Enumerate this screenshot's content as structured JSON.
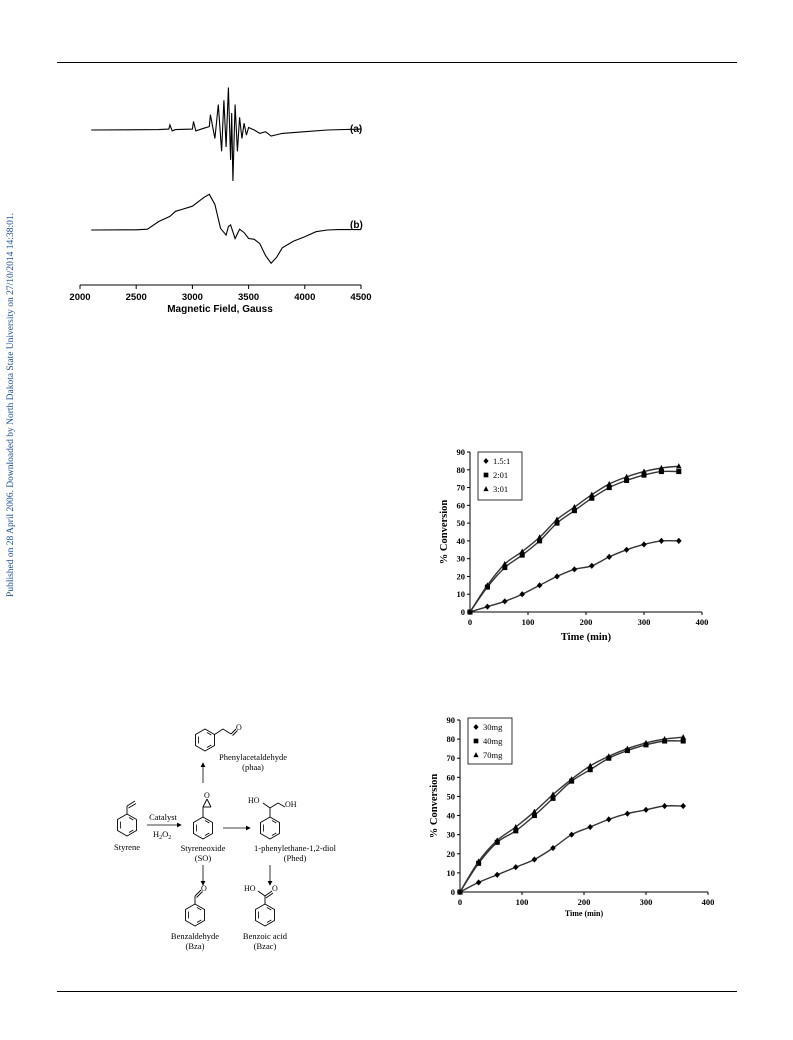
{
  "side_note": "Published on 28 April 2006. Downloaded by North Dakota State University on 27/10/2014 14:38:01.",
  "epr": {
    "xlabel": "Magnetic Field, Gauss",
    "trace_a_label": "(a)",
    "trace_b_label": "(b)"
  },
  "scheme": {
    "styrene": "Styrene",
    "catalyst": "Catalyst",
    "oxidant": "H",
    "oxidant_sub1": "2",
    "oxidant_o": "O",
    "oxidant_sub2": "2",
    "styreneoxide": "Styreneoxide",
    "so": "(SO)",
    "phenylacetaldehyde": "Phenylacetaldehyde",
    "phaa": "(phaa)",
    "diol": "1-phenylethane-1,2-diol",
    "phed": "(Phed)",
    "benzaldehyde": "Benzaldehyde",
    "bza": "(Bza)",
    "benzoic_acid": "Benzoic acid",
    "bzac": "(Bzac)",
    "atom_o": "O",
    "atom_ho": "HO",
    "atom_oh": "OH"
  },
  "chart_data": [
    {
      "id": "epr-spectrum",
      "type": "line",
      "xlabel": "Magnetic Field, Gauss",
      "ylabel": "",
      "xlim": [
        2000,
        4500
      ],
      "xticks": [
        2000,
        2500,
        3000,
        3500,
        4000,
        4500
      ],
      "grid": false,
      "series": [
        {
          "name": "(a)",
          "x": [
            2100,
            2700,
            2790,
            2800,
            2820,
            2850,
            3000,
            3010,
            3030,
            3100,
            3150,
            3160,
            3200,
            3230,
            3260,
            3280,
            3300,
            3320,
            3340,
            3350,
            3360,
            3380,
            3400,
            3420,
            3440,
            3460,
            3480,
            3500,
            3550,
            3600,
            3650,
            3700,
            3800,
            4000,
            4200,
            4500
          ],
          "y": [
            0.0,
            0.05,
            0.1,
            0.6,
            -0.1,
            0.05,
            0.1,
            1.0,
            -0.1,
            0.2,
            0.4,
            1.8,
            -1.0,
            3.0,
            -2.5,
            3.5,
            -2.0,
            5.0,
            -3.5,
            2.0,
            -6.0,
            3.0,
            -2.5,
            1.5,
            -1.0,
            0.8,
            -0.6,
            0.3,
            0.0,
            -0.4,
            -0.2,
            -0.7,
            -0.4,
            -0.2,
            0.0,
            0.1
          ]
        },
        {
          "name": "(b)",
          "x": [
            2100,
            2500,
            2600,
            2700,
            2800,
            2850,
            2900,
            3000,
            3100,
            3150,
            3200,
            3250,
            3300,
            3320,
            3340,
            3380,
            3420,
            3460,
            3500,
            3550,
            3600,
            3650,
            3700,
            3750,
            3800,
            3900,
            4000,
            4100,
            4200,
            4300,
            4500
          ],
          "y": [
            0.0,
            0.02,
            0.1,
            1.0,
            1.6,
            2.2,
            2.4,
            2.8,
            3.8,
            4.2,
            3.0,
            0.2,
            -0.6,
            0.4,
            0.6,
            -1.0,
            0.1,
            -0.3,
            -1.0,
            -1.1,
            -1.6,
            -3.0,
            -3.9,
            -3.2,
            -2.1,
            -1.3,
            -0.8,
            -0.2,
            0.0,
            0.05,
            0.05
          ]
        }
      ]
    },
    {
      "id": "conversion-ratio",
      "type": "scatter",
      "xlabel": "Time (min)",
      "ylabel": "% Conversion",
      "xlim": [
        0,
        400
      ],
      "ylim": [
        0,
        90
      ],
      "xticks": [
        0,
        100,
        200,
        300,
        400
      ],
      "yticks": [
        0,
        10,
        20,
        30,
        40,
        50,
        60,
        70,
        80,
        90
      ],
      "legend": "top-left",
      "series": [
        {
          "name": "1.5:1",
          "marker": "diamond",
          "x": [
            0,
            30,
            60,
            90,
            120,
            150,
            180,
            210,
            240,
            270,
            300,
            330,
            360
          ],
          "y": [
            0,
            3,
            6,
            10,
            15,
            20,
            24,
            26,
            31,
            35,
            38,
            40,
            40
          ]
        },
        {
          "name": "2:01",
          "marker": "square",
          "x": [
            0,
            30,
            60,
            90,
            120,
            150,
            180,
            210,
            240,
            270,
            300,
            330,
            360
          ],
          "y": [
            0,
            14,
            25,
            32,
            40,
            50,
            57,
            64,
            70,
            74,
            77,
            79,
            79
          ]
        },
        {
          "name": "3:01",
          "marker": "triangle",
          "x": [
            0,
            30,
            60,
            90,
            120,
            150,
            180,
            210,
            240,
            270,
            300,
            330,
            360
          ],
          "y": [
            0,
            15,
            27,
            34,
            42,
            52,
            59,
            66,
            72,
            76,
            79,
            81,
            82
          ]
        }
      ]
    },
    {
      "id": "conversion-catalyst-amount",
      "type": "scatter",
      "xlabel": "Time (min)",
      "ylabel": "% Conversion",
      "xlim": [
        0,
        400
      ],
      "ylim": [
        0,
        90
      ],
      "xticks": [
        0,
        100,
        200,
        300,
        400
      ],
      "yticks": [
        0,
        10,
        20,
        30,
        40,
        50,
        60,
        70,
        80,
        90
      ],
      "legend": "top-left",
      "series": [
        {
          "name": "30mg",
          "marker": "diamond",
          "x": [
            0,
            30,
            60,
            90,
            120,
            150,
            180,
            210,
            240,
            270,
            300,
            330,
            360
          ],
          "y": [
            0,
            5,
            9,
            13,
            17,
            23,
            30,
            34,
            38,
            41,
            43,
            45,
            45
          ]
        },
        {
          "name": "40mg",
          "marker": "square",
          "x": [
            0,
            30,
            60,
            90,
            120,
            150,
            180,
            210,
            240,
            270,
            300,
            330,
            360
          ],
          "y": [
            0,
            15,
            26,
            32,
            40,
            49,
            58,
            64,
            70,
            74,
            77,
            79,
            79
          ]
        },
        {
          "name": "70mg",
          "marker": "triangle",
          "x": [
            0,
            30,
            60,
            90,
            120,
            150,
            180,
            210,
            240,
            270,
            300,
            330,
            360
          ],
          "y": [
            0,
            16,
            27,
            34,
            42,
            51,
            59,
            66,
            71,
            75,
            78,
            80,
            81
          ]
        }
      ]
    }
  ]
}
